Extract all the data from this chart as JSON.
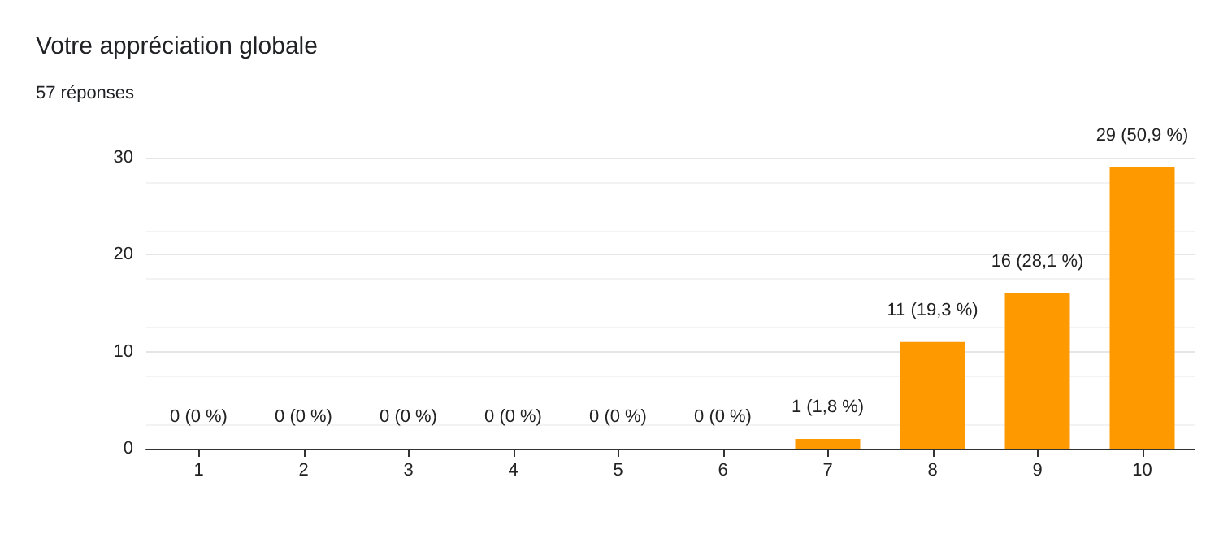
{
  "chart_data": {
    "type": "bar",
    "title": "Votre appréciation globale",
    "subtitle": "57 réponses",
    "categories": [
      "1",
      "2",
      "3",
      "4",
      "5",
      "6",
      "7",
      "8",
      "9",
      "10"
    ],
    "values": [
      0,
      0,
      0,
      0,
      0,
      0,
      1,
      11,
      16,
      29
    ],
    "value_labels": [
      "0 (0 %)",
      "0 (0 %)",
      "0 (0 %)",
      "0 (0 %)",
      "0 (0 %)",
      "0 (0 %)",
      "1 (1,8 %)",
      "11 (19,3 %)",
      "16 (28,1 %)",
      "29 (50,9 %)"
    ],
    "color": "#ff9900",
    "ylim": [
      0,
      30
    ],
    "yticks": [
      0,
      10,
      20,
      30
    ],
    "grid": "y"
  }
}
